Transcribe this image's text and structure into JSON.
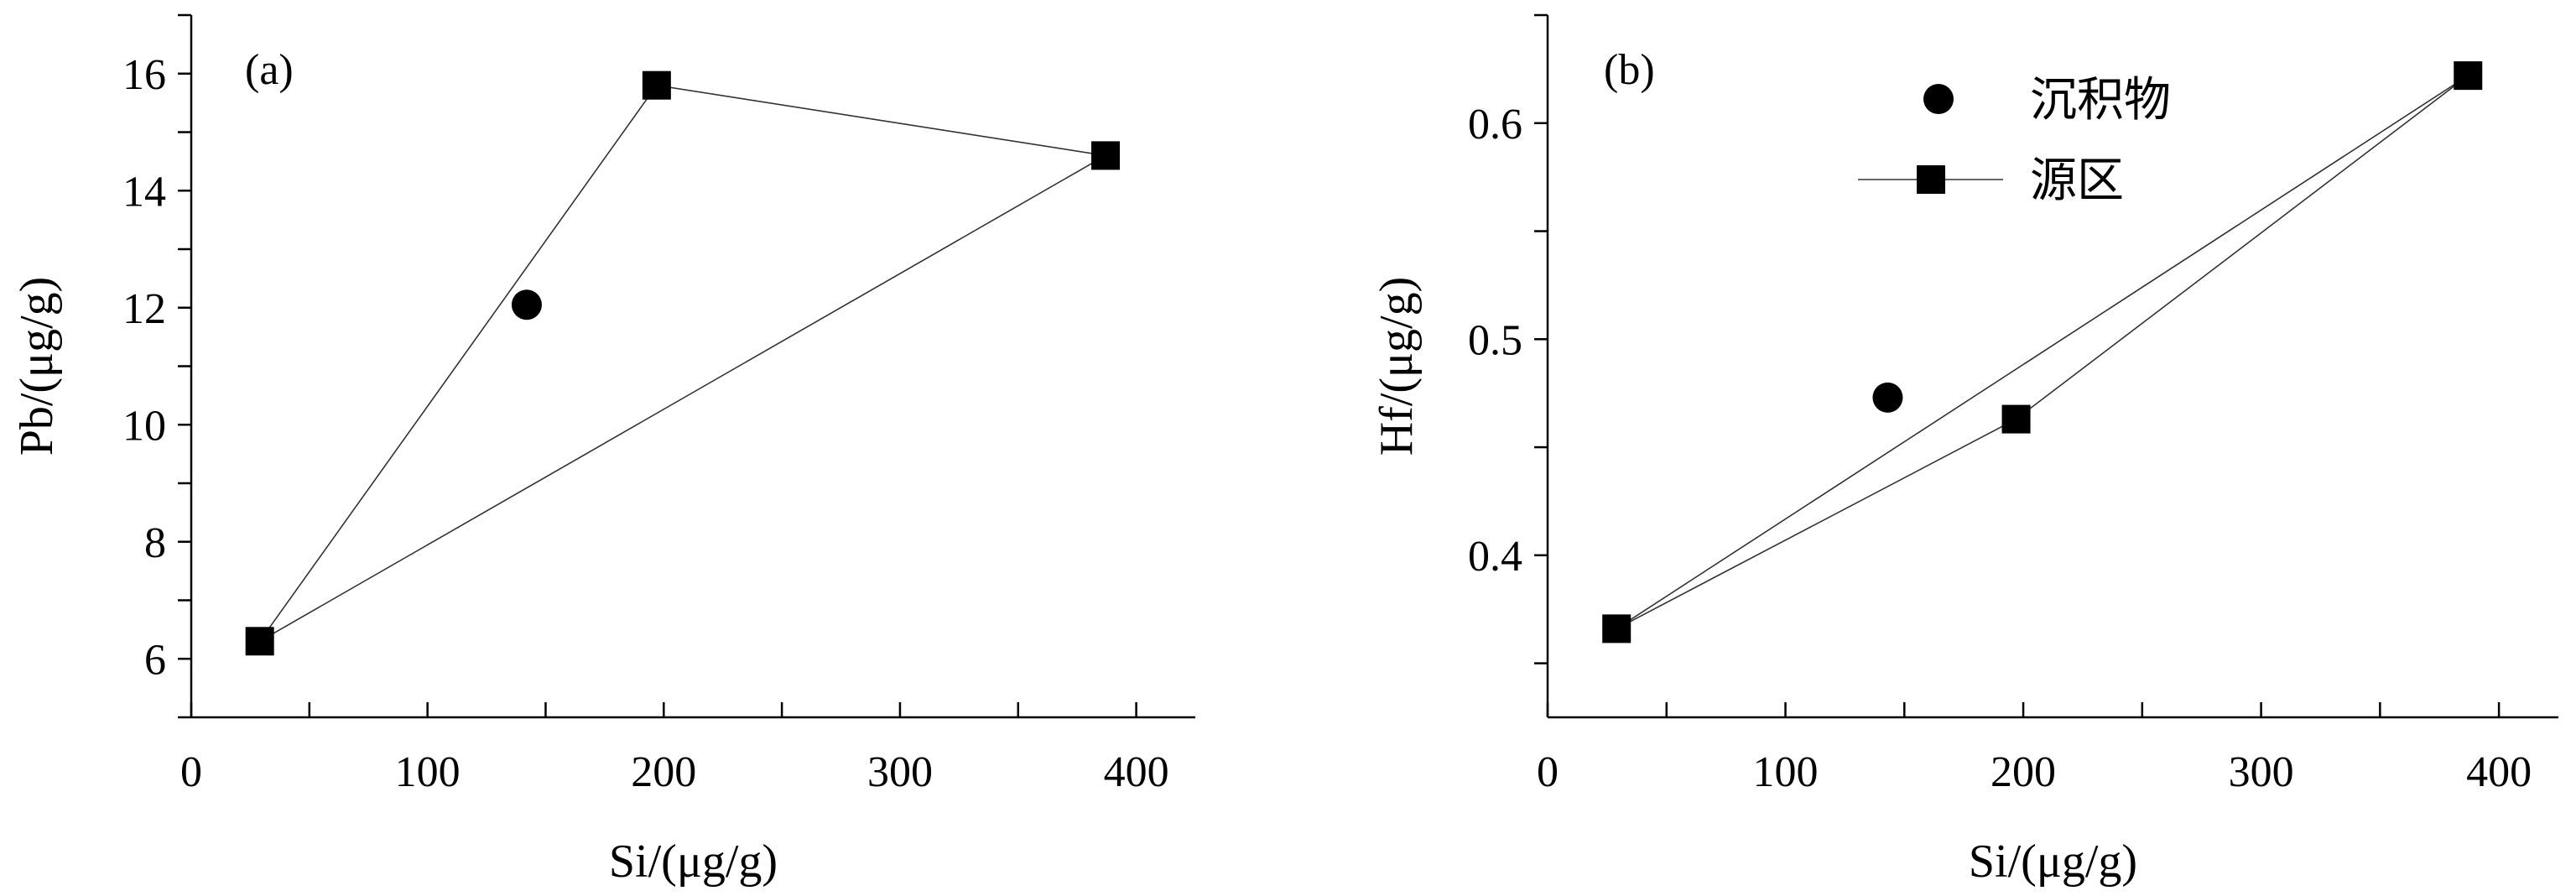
{
  "chart_data": [
    {
      "type": "scatter",
      "panel_label": "(a)",
      "xlabel": "Si/(μg/g)",
      "ylabel": "Pb/(μg/g)",
      "xlim": [
        0,
        425
      ],
      "ylim": [
        5,
        17
      ],
      "xticks": [
        0,
        100,
        200,
        300,
        400
      ],
      "xminor": [
        50,
        150,
        250,
        350
      ],
      "yticks": [
        6,
        8,
        10,
        12,
        14,
        16
      ],
      "yminor": [
        5,
        7,
        9,
        11,
        13,
        15,
        17
      ],
      "series": [
        {
          "name": "沉积物",
          "marker": "circle",
          "points": [
            [
              142,
              12.05
            ]
          ]
        },
        {
          "name": "源区",
          "marker": "square",
          "connect": "triangle",
          "points": [
            [
              29,
              6.3
            ],
            [
              197,
              15.8
            ],
            [
              387,
              14.6
            ]
          ]
        }
      ]
    },
    {
      "type": "scatter",
      "panel_label": "(b)",
      "xlabel": "Si/(μg/g)",
      "ylabel": "Hf/(μg/g)",
      "xlim": [
        0,
        425
      ],
      "ylim": [
        0.325,
        0.65
      ],
      "xticks": [
        0,
        100,
        200,
        300,
        400
      ],
      "xminor": [
        50,
        150,
        250,
        350
      ],
      "yticks": [
        0.4,
        0.5,
        0.6
      ],
      "yminor": [
        0.35,
        0.45,
        0.55,
        0.65
      ],
      "series": [
        {
          "name": "沉积物",
          "marker": "circle",
          "points": [
            [
              143,
              0.473
            ]
          ]
        },
        {
          "name": "源区",
          "marker": "square",
          "connect": "triangle",
          "points": [
            [
              29,
              0.366
            ],
            [
              197,
              0.463
            ],
            [
              387,
              0.622
            ]
          ]
        }
      ],
      "legend": {
        "position": "top-center",
        "entries": [
          {
            "label": "沉积物",
            "marker": "circle"
          },
          {
            "label": "源区",
            "marker": "square-line"
          }
        ]
      }
    }
  ]
}
